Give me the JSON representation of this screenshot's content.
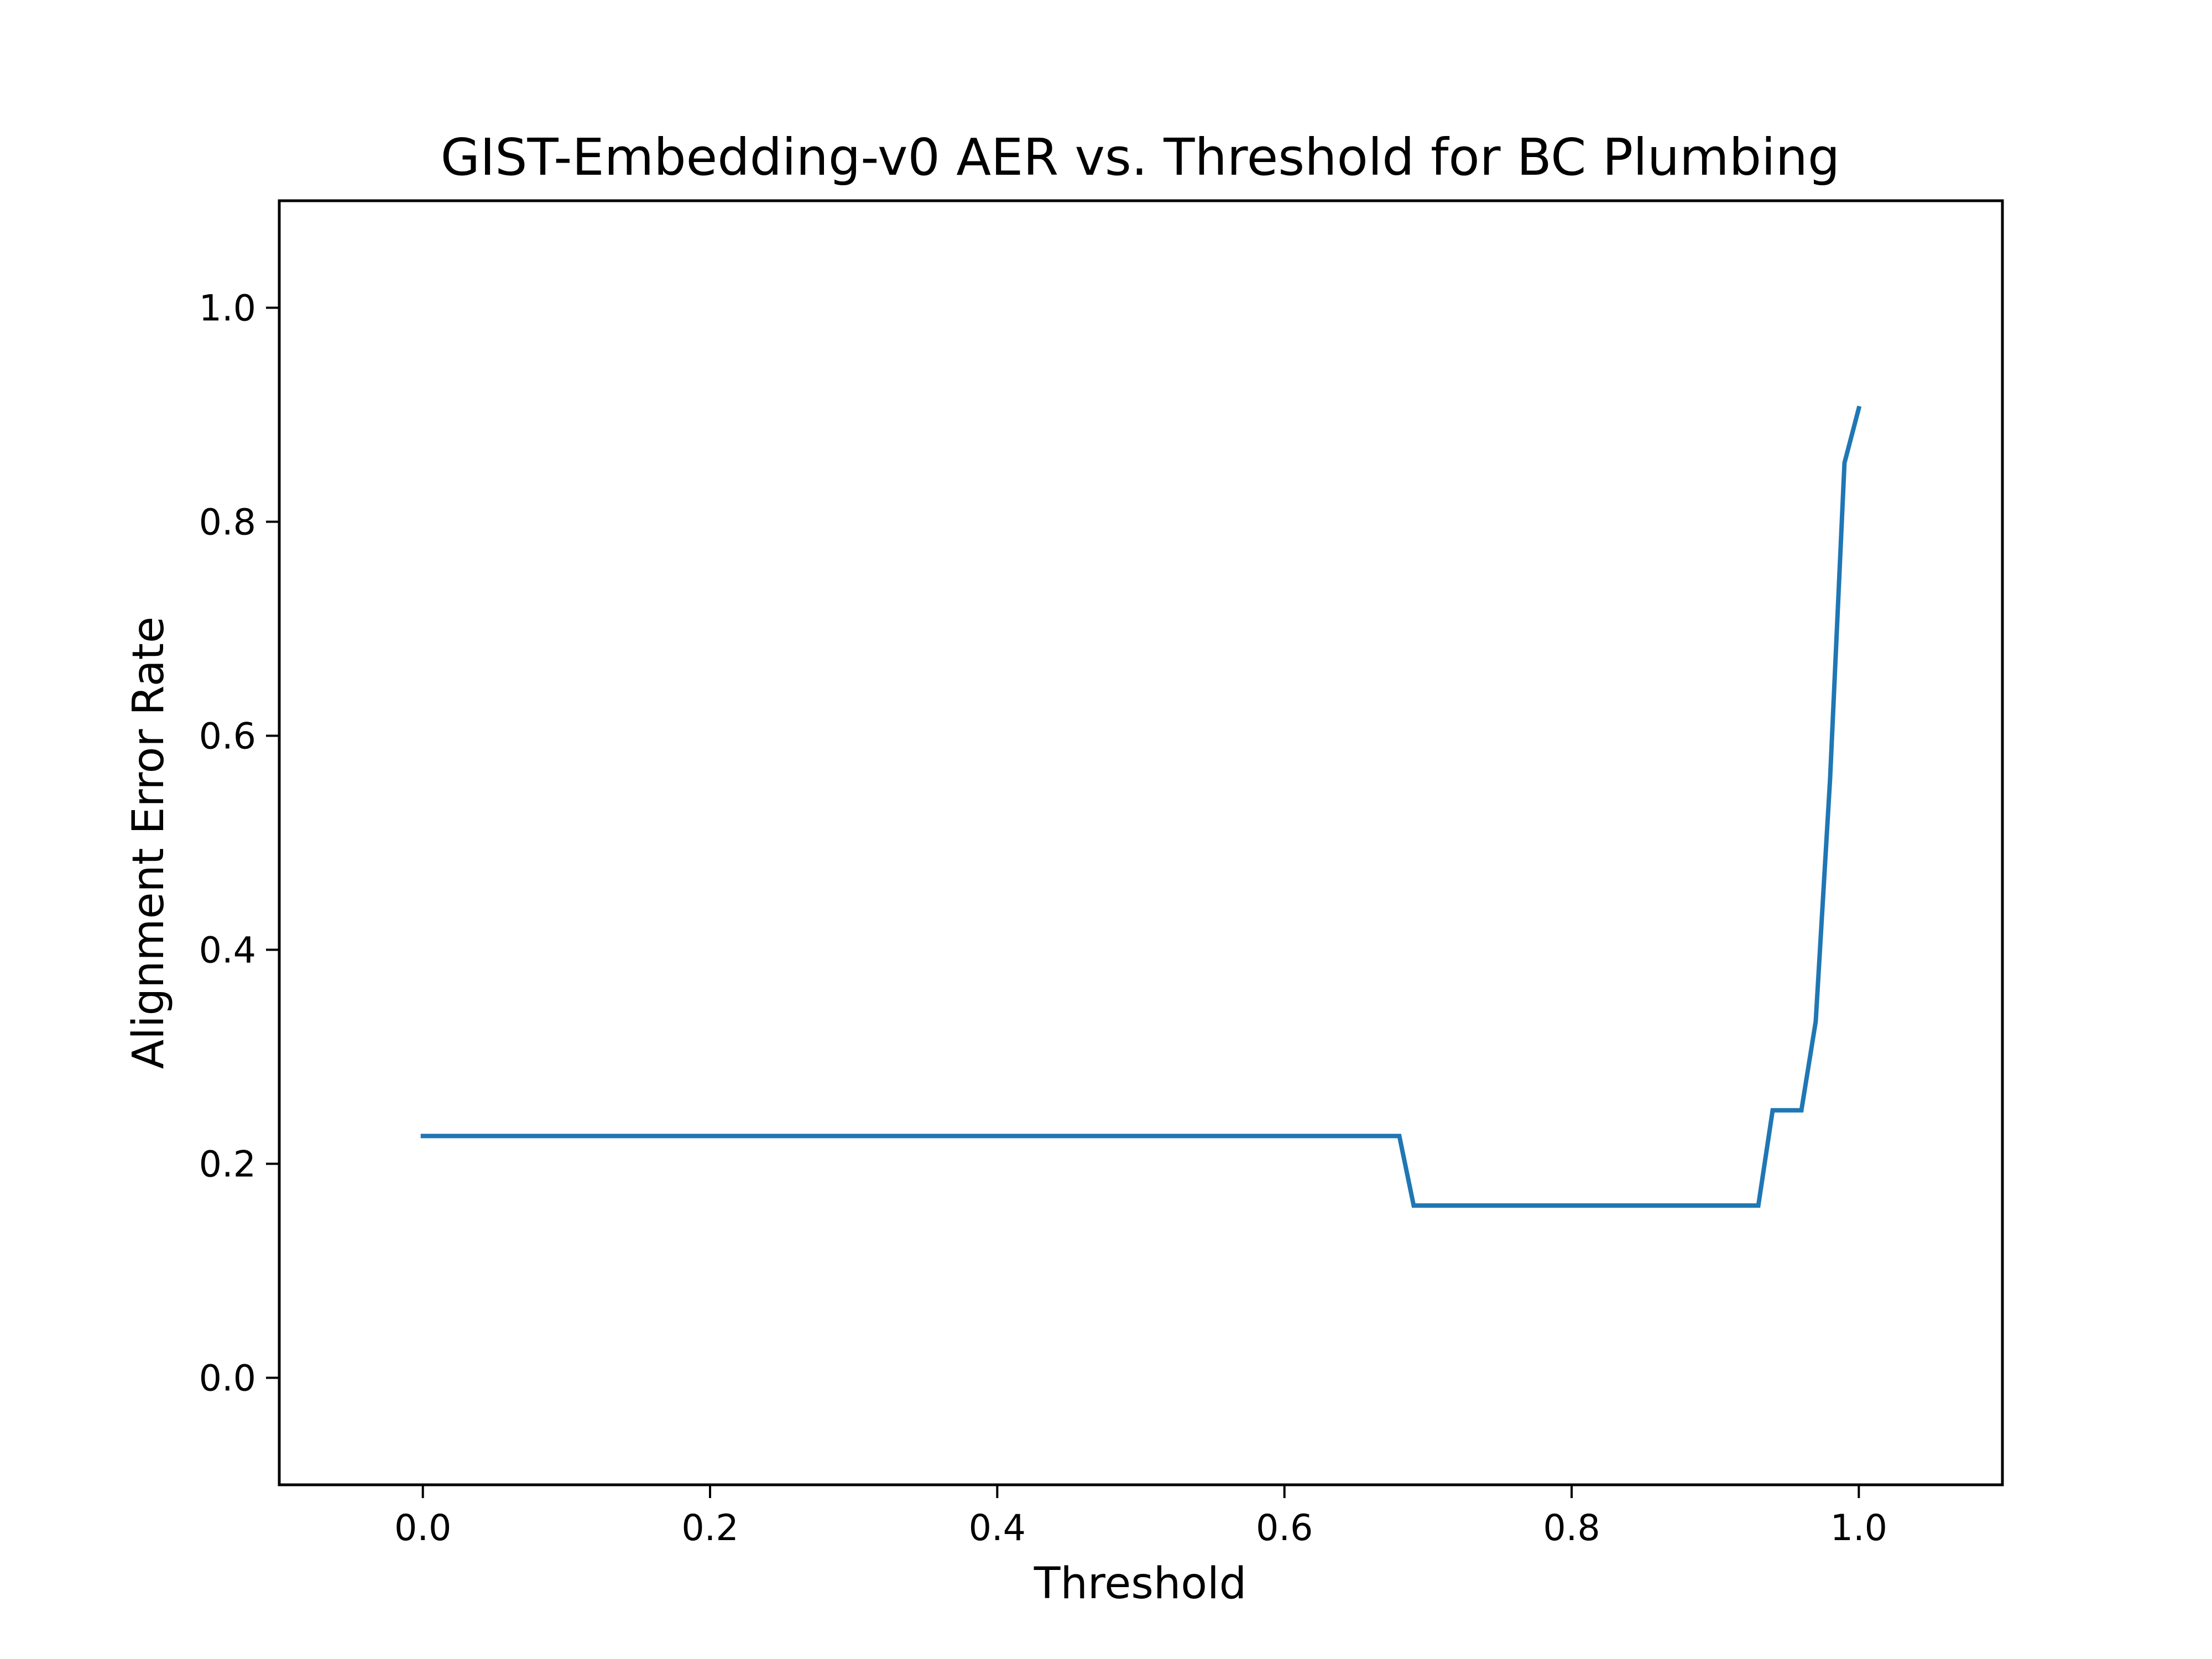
{
  "chart_data": {
    "type": "line",
    "title": "GIST-Embedding-v0 AER vs. Threshold for BC Plumbing",
    "xlabel": "Threshold",
    "ylabel": "Alignment Error Rate",
    "xlim": [
      -0.1,
      1.1
    ],
    "ylim": [
      -0.1,
      1.1
    ],
    "grid": false,
    "x_ticks": [
      0.0,
      0.2,
      0.4,
      0.6,
      0.8,
      1.0
    ],
    "x_tick_labels": [
      "0.0",
      "0.2",
      "0.4",
      "0.6",
      "0.8",
      "1.0"
    ],
    "y_ticks": [
      0.0,
      0.2,
      0.4,
      0.6,
      0.8,
      1.0
    ],
    "y_tick_labels": [
      "0.0",
      "0.2",
      "0.4",
      "0.6",
      "0.8",
      "1.0"
    ],
    "series": [
      {
        "color": "#1f77b4",
        "x": [
          0.0,
          0.68,
          0.69,
          0.93,
          0.94,
          0.96,
          0.97,
          0.98,
          0.99,
          1.0
        ],
        "y": [
          0.226,
          0.226,
          0.161,
          0.161,
          0.25,
          0.25,
          0.333,
          0.56,
          0.855,
          0.906
        ]
      }
    ]
  }
}
